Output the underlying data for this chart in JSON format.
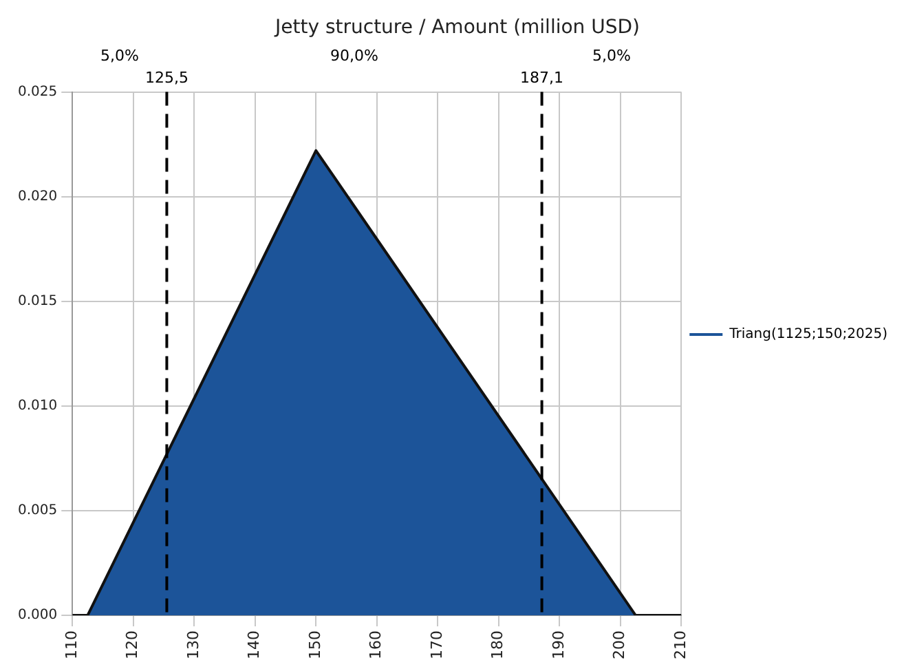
{
  "chart_data": {
    "type": "area",
    "title": "Jetty structure / Amount (million USD)",
    "x": [
      110,
      112.5,
      150,
      202.5,
      210
    ],
    "series": [
      {
        "name": "Triang(1125;150;2025)",
        "color": "#1c5499",
        "values": [
          0,
          0,
          0.0222,
          0,
          0
        ]
      }
    ],
    "xlim": [
      110,
      210
    ],
    "xticks": [
      110,
      120,
      130,
      140,
      150,
      160,
      170,
      180,
      190,
      200,
      210
    ],
    "ylim": [
      0,
      0.025
    ],
    "yticks": [
      {
        "value": 0,
        "label": "0.000"
      },
      {
        "value": 0.005,
        "label": "0.005"
      },
      {
        "value": 0.01,
        "label": "0.010"
      },
      {
        "value": 0.015,
        "label": "0.015"
      },
      {
        "value": 0.02,
        "label": "0.020"
      },
      {
        "value": 0.025,
        "label": "0.025"
      }
    ],
    "ref_lines": [
      {
        "axis": "x",
        "value": 125.5,
        "label": "125,5",
        "color": "#000000",
        "line_style": "dashed"
      },
      {
        "axis": "x",
        "value": 187.1,
        "label": "187,1",
        "color": "#000000",
        "line_style": "dashed"
      }
    ],
    "annotations": [
      "5,0%",
      "90,0%",
      "5,0%"
    ],
    "grid": true,
    "legend": "right"
  }
}
